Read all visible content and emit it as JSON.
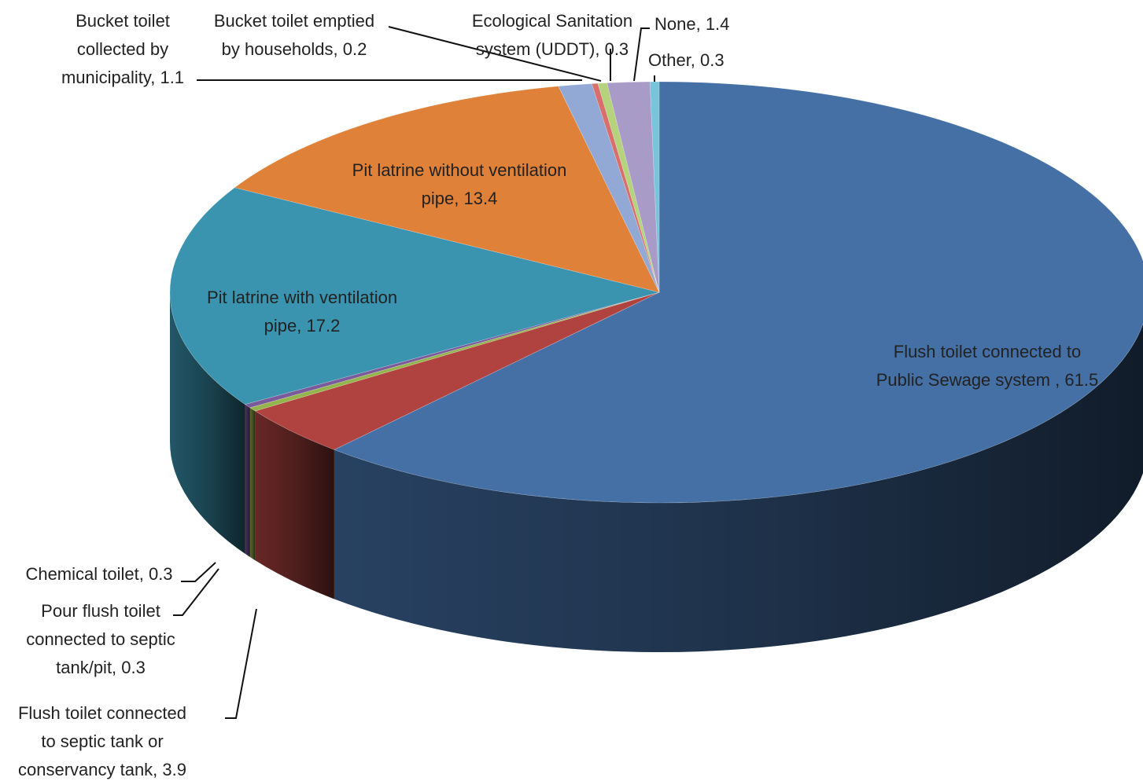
{
  "chart_data": {
    "type": "pie",
    "style": "3d",
    "series": [
      {
        "name": "",
        "points": [
          {
            "label": "Flush toilet connected to Public Sewage system , 61.5",
            "value": 61.5,
            "color": "#4470A6"
          },
          {
            "label": "Flush toilet connected to septic tank or conservancy tank, 3.9",
            "value": 3.9,
            "color": "#B04340"
          },
          {
            "label": "Pour flush toilet connected to septic tank/pit, 0.3",
            "value": 0.3,
            "color": "#93B54C"
          },
          {
            "label": "Chemical toilet, 0.3",
            "value": 0.3,
            "color": "#7A5A9A"
          },
          {
            "label": "Pit latrine with ventilation pipe, 17.2",
            "value": 17.2,
            "color": "#3A94B0"
          },
          {
            "label": "Pit latrine without ventilation pipe, 13.4",
            "value": 13.4,
            "color": "#DF8138"
          },
          {
            "label": "Bucket toilet collected by municipality, 1.1",
            "value": 1.1,
            "color": "#92A9D6"
          },
          {
            "label": "Bucket toilet emptied by households, 0.2",
            "value": 0.2,
            "color": "#D96F6D"
          },
          {
            "label": "Ecological Sanitation system (UDDT), 0.3",
            "value": 0.3,
            "color": "#B5D37C"
          },
          {
            "label": "None, 1.4",
            "value": 1.4,
            "color": "#A99BC8"
          },
          {
            "label": "Other, 0.3",
            "value": 0.3,
            "color": "#78C5DB"
          }
        ]
      }
    ],
    "labels": [
      {
        "lines": [
          "Flush toilet connected to",
          "Public Sewage system , 61.5"
        ]
      },
      {
        "lines": [
          "Flush toilet connected",
          "to septic tank or",
          "conservancy tank, 3.9"
        ]
      },
      {
        "lines": [
          "Pour flush toilet",
          "connected to septic",
          "tank/pit, 0.3"
        ]
      },
      {
        "lines": [
          "Chemical toilet, 0.3"
        ]
      },
      {
        "lines": [
          "Pit latrine with ventilation",
          "pipe, 17.2"
        ]
      },
      {
        "lines": [
          "Pit latrine without ventilation",
          "pipe, 13.4"
        ]
      },
      {
        "lines": [
          "Bucket toilet",
          "collected by",
          "municipality, 1.1"
        ]
      },
      {
        "lines": [
          "Bucket toilet emptied",
          "by households, 0.2"
        ]
      },
      {
        "lines": [
          "Ecological Sanitation",
          "system (UDDT), 0.3"
        ]
      },
      {
        "lines": [
          "None, 1.4"
        ]
      },
      {
        "lines": [
          "Other, 0.3"
        ]
      }
    ],
    "legend": "none",
    "start": "top, clockwise"
  }
}
